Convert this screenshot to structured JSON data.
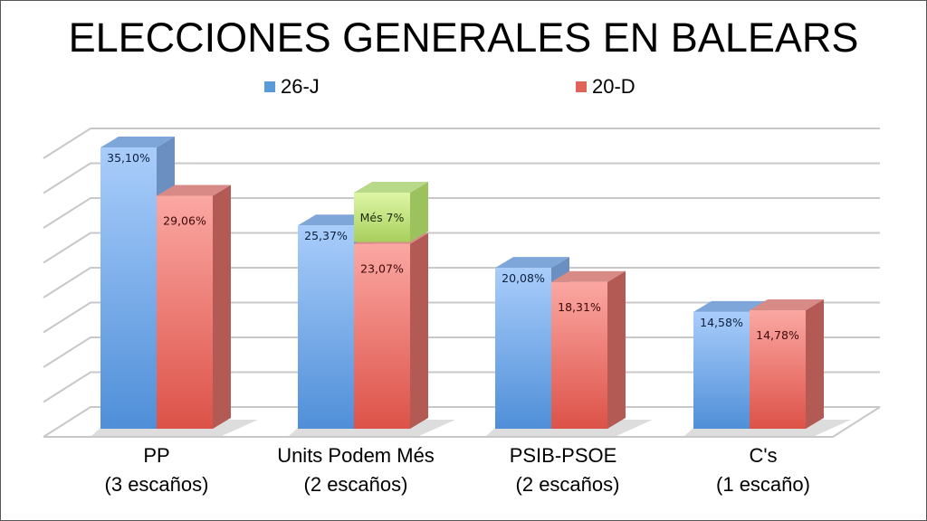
{
  "chart_data": {
    "type": "bar",
    "title": "ELECCIONES GENERALES EN BALEARS",
    "categories": [
      [
        "PP",
        "(3 escaños)"
      ],
      [
        "Units Podem Més",
        "(2 escaños)"
      ],
      [
        "PSIB-PSOE",
        "(2 escaños)"
      ],
      [
        "C's",
        "(1 escaño)"
      ]
    ],
    "series": [
      {
        "name": "26-J",
        "color": "#5b9bd5",
        "values": [
          35.1,
          25.37,
          20.08,
          14.58
        ],
        "labels": [
          "35,10%",
          "25,37%",
          "20,08%",
          "14,58%"
        ]
      },
      {
        "name": "20-D",
        "color": "#e06258",
        "values": [
          29.06,
          23.07,
          18.31,
          14.78
        ],
        "labels": [
          "29,06%",
          "23,07%",
          "18,31%",
          "14,78%"
        ]
      }
    ],
    "stacked_annotation": {
      "category_index": 1,
      "series_index": 1,
      "value": 7,
      "label": "Més 7%",
      "color": "#b5d76a"
    },
    "ylim": [
      0,
      40
    ],
    "grid_step": 5,
    "grid": true,
    "legend_position": "top",
    "style": "3d-column"
  }
}
